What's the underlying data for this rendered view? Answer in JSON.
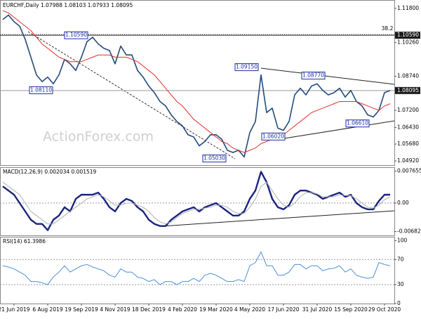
{
  "chart_data": [
    {
      "type": "line",
      "title": "EURCHF,Daily  1.07988 1.08103 1.07933 1.08095",
      "watermark": "ActionForex.com",
      "ylim": [
        1.0473,
        1.1218
      ],
      "yticks": [
        {
          "value": 1.118,
          "label": "1.11800"
        },
        {
          "value": 1.1026,
          "label": "1.10260"
        },
        {
          "value": 1.0874,
          "label": "1.08740"
        },
        {
          "value": 1.072,
          "label": "1.07200"
        },
        {
          "value": 1.0643,
          "label": "1.06430"
        },
        {
          "value": 1.0568,
          "label": "1.05680"
        },
        {
          "value": 1.0492,
          "label": "1.04920"
        }
      ],
      "levels": [
        {
          "value": 1.1059,
          "label": "1.10590"
        },
        {
          "value": 1.08095,
          "label": "1.08095"
        }
      ],
      "fib_label": "38.2",
      "annotations": [
        {
          "value": 1.1059,
          "label": "1.10590"
        },
        {
          "value": 1.0811,
          "label": "1.08110"
        },
        {
          "value": 1.0915,
          "label": "1.09150"
        },
        {
          "value": 1.0877,
          "label": "1.08770"
        },
        {
          "value": 1.0602,
          "label": "1.06020"
        },
        {
          "value": 1.0503,
          "label": "1.05030"
        },
        {
          "value": 1.0661,
          "label": "1.06610"
        }
      ],
      "series": [
        {
          "color": "#234b7a",
          "values": [
            1.113,
            1.115,
            1.112,
            1.11,
            1.104,
            1.096,
            1.088,
            1.085,
            1.087,
            1.084,
            1.088,
            1.095,
            1.093,
            1.09,
            1.096,
            1.103,
            1.105,
            1.102,
            1.1,
            1.099,
            1.093,
            1.101,
            1.097,
            1.097,
            1.09,
            1.087,
            1.083,
            1.08,
            1.076,
            1.074,
            1.07,
            1.067,
            1.065,
            1.061,
            1.06,
            1.056,
            1.058,
            1.061,
            1.061,
            1.059,
            1.054,
            1.053,
            1.054,
            1.051,
            1.062,
            1.067,
            1.088,
            1.071,
            1.073,
            1.064,
            1.063,
            1.067,
            1.079,
            1.082,
            1.079,
            1.083,
            1.084,
            1.081,
            1.079,
            1.08,
            1.082,
            1.078,
            1.081,
            1.076,
            1.074,
            1.07,
            1.069,
            1.072,
            1.08,
            1.081
          ]
        },
        {
          "color": "#e0302c",
          "values": [
            1.117,
            1.116,
            1.114,
            1.112,
            1.11,
            1.108,
            1.105,
            1.102,
            1.1,
            1.098,
            1.096,
            1.095,
            1.094,
            1.094,
            1.094,
            1.095,
            1.096,
            1.097,
            1.097,
            1.097,
            1.096,
            1.096,
            1.096,
            1.095,
            1.094,
            1.092,
            1.09,
            1.088,
            1.085,
            1.082,
            1.079,
            1.076,
            1.074,
            1.071,
            1.068,
            1.066,
            1.064,
            1.062,
            1.06,
            1.058,
            1.057,
            1.055,
            1.054,
            1.053,
            1.054,
            1.055,
            1.057,
            1.058,
            1.059,
            1.06,
            1.061,
            1.063,
            1.065,
            1.067,
            1.069,
            1.071,
            1.072,
            1.073,
            1.074,
            1.075,
            1.076,
            1.076,
            1.076,
            1.076,
            1.075,
            1.074,
            1.073,
            1.072,
            1.074,
            1.075
          ]
        }
      ]
    },
    {
      "type": "line",
      "title": "MACD(12,26,9) 0.002034 0.001519",
      "ylim": [
        -0.007744,
        0.008586
      ],
      "yticks": [
        0.007655,
        {
          "value": 0,
          "label": "0.00"
        },
        -0.006822
      ],
      "reference_lines": [
        0
      ],
      "series": [
        {
          "color": "#1a237e",
          "values": [
            0.004,
            0.003,
            0.002,
            0,
            -0.002,
            -0.004,
            -0.005,
            -0.005,
            -0.0065,
            -0.004,
            -0.003,
            -0.001,
            -0.002,
            0.001,
            0.002,
            0.002,
            0.002,
            0.0025,
            0.001,
            -0.001,
            -0.002,
            0,
            0.001,
            0.0005,
            -0.001,
            -0.002,
            -0.004,
            -0.005,
            -0.0055,
            -0.0055,
            -0.004,
            -0.003,
            -0.002,
            -0.0015,
            -0.001,
            -0.002,
            -0.001,
            -0.0005,
            0,
            -0.001,
            -0.002,
            -0.003,
            -0.003,
            -0.002,
            0.001,
            0.003,
            0.0075,
            0.005,
            0.001,
            -0.001,
            -0.0015,
            -0.0005,
            0.002,
            0.003,
            0.003,
            0.0025,
            0.002,
            0.001,
            0.0015,
            0.002,
            0.0025,
            0.0015,
            0.002,
            0,
            -0.001,
            -0.0015,
            -0.0015,
            0.0005,
            0.002,
            0.002
          ]
        },
        {
          "color": "#b0b0b0",
          "values": [
            0.005,
            0.004,
            0.003,
            0.002,
            0,
            -0.002,
            -0.003,
            -0.004,
            -0.005,
            -0.005,
            -0.004,
            -0.003,
            -0.002,
            -0.001,
            0,
            0.001,
            0.0015,
            0.002,
            0.0015,
            0.0005,
            -0.0005,
            -0.0005,
            0,
            0,
            -0.0005,
            -0.001,
            -0.002,
            -0.0035,
            -0.0045,
            -0.005,
            -0.0045,
            -0.0035,
            -0.0025,
            -0.002,
            -0.0015,
            -0.0015,
            -0.0012,
            -0.001,
            -0.0005,
            -0.0005,
            -0.001,
            -0.002,
            -0.0025,
            -0.0025,
            -0.001,
            0.001,
            0.004,
            0.005,
            0.003,
            0.001,
            -0.0005,
            -0.001,
            0,
            0.0015,
            0.0025,
            0.0025,
            0.0022,
            0.0015,
            0.0015,
            0.0015,
            0.002,
            0.0018,
            0.0018,
            0.001,
            0,
            -0.001,
            -0.0012,
            -0.0005,
            0.0008,
            0.0015
          ]
        }
      ]
    },
    {
      "type": "line",
      "title": "RSI(14) 61.3986",
      "ylim": [
        0,
        106
      ],
      "yticks": [
        100,
        70,
        30,
        0
      ],
      "reference_lines": [
        70,
        30
      ],
      "categories": [
        null,
        null,
        "21 Jun 2019",
        null,
        null,
        null,
        null,
        null,
        "6 Aug 2019",
        null,
        null,
        null,
        null,
        null,
        "19 Sep 2019",
        null,
        null,
        null,
        null,
        null,
        "4 Nov 2019",
        null,
        null,
        null,
        null,
        null,
        "18 Dec 2019",
        null,
        null,
        null,
        null,
        null,
        "4 Feb 2020",
        null,
        null,
        null,
        null,
        null,
        "19 Mar 2020",
        null,
        null,
        null,
        null,
        null,
        "4 May 2020",
        null,
        null,
        null,
        null,
        null,
        "17 Jun 2020",
        null,
        null,
        null,
        null,
        null,
        "31 Jul 2020",
        null,
        null,
        null,
        null,
        null,
        "15 Sep 2020",
        null,
        null,
        null,
        null,
        null,
        "29 Oct 2020",
        null
      ],
      "series": [
        {
          "color": "#4a90d9",
          "values": [
            60,
            58,
            55,
            50,
            45,
            35,
            35,
            33,
            30,
            42,
            50,
            60,
            50,
            55,
            60,
            62,
            58,
            55,
            52,
            45,
            42,
            55,
            50,
            50,
            42,
            40,
            35,
            38,
            30,
            35,
            35,
            30,
            35,
            35,
            40,
            35,
            45,
            48,
            45,
            40,
            35,
            35,
            38,
            35,
            60,
            65,
            82,
            60,
            60,
            45,
            45,
            50,
            62,
            62,
            55,
            60,
            60,
            52,
            55,
            56,
            60,
            50,
            55,
            45,
            42,
            40,
            42,
            65,
            62,
            60
          ]
        }
      ]
    }
  ]
}
